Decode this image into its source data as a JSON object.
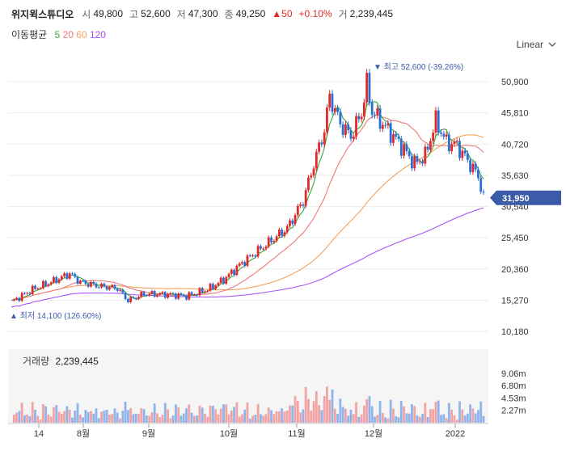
{
  "header": {
    "name": "위지윅스튜디오",
    "open_label": "시",
    "open": "49,800",
    "high_label": "고",
    "high": "52,600",
    "low_label": "저",
    "low": "47,300",
    "close_label": "종",
    "close": "49,250",
    "change": "▲50",
    "change_pct": "+0.10%",
    "volume_label": "거",
    "volume": "2,239,445"
  },
  "ma_legend": {
    "title": "이동평균",
    "periods": [
      {
        "label": "5",
        "color": "#3aa63a"
      },
      {
        "label": "20",
        "color": "#f07878"
      },
      {
        "label": "60",
        "color": "#f5a05a"
      },
      {
        "label": "120",
        "color": "#a855f7"
      }
    ]
  },
  "scale_button": {
    "label": "Linear",
    "icon": "chevron-down-icon"
  },
  "chart_data": {
    "type": "candlestick",
    "y_ticks": [
      "50,900",
      "45,810",
      "40,720",
      "35,630",
      "30,540",
      "25,450",
      "20,360",
      "15,270",
      "10,180"
    ],
    "ylim": [
      10180,
      50900
    ],
    "x_ticks": [
      "14",
      "8월",
      "9월",
      "10월",
      "11월",
      "12월",
      "2022"
    ],
    "current_price": "31,950",
    "max_annotation": "최고 52,600 (-39.26%)",
    "min_annotation": "최저 14,100 (126.60%)",
    "up_color": "#e02a2a",
    "down_color": "#2a6fd6",
    "volume_title": "거래량",
    "volume_value": "2,239,445",
    "volume_ticks": [
      "9.06m",
      "6.80m",
      "4.53m",
      "2.27m"
    ]
  }
}
